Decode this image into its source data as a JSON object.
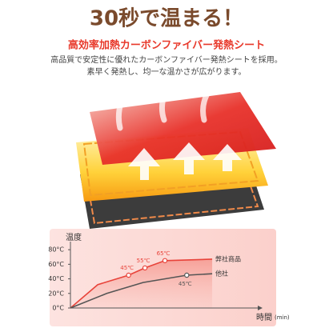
{
  "header": {
    "title": "30秒で温まる！",
    "subtitle": "高効率加熱カーボンファイバー発熱シート",
    "description": [
      "高品質で安定性に優れたカーボンファイバー発熱シートを採用。",
      "素早く発熱し、均一な温かさが広がります。"
    ]
  },
  "chart_data": {
    "type": "line",
    "y_label": "温度",
    "x_label": "時間",
    "x_unit": "(min)",
    "xlim": [
      0,
      10
    ],
    "ylim": [
      0,
      90
    ],
    "yticks": [
      {
        "value": 0,
        "label": "0°C"
      },
      {
        "value": 20,
        "label": "20°C"
      },
      {
        "value": 40,
        "label": "40°C"
      },
      {
        "value": 60,
        "label": "60°C"
      },
      {
        "value": 80,
        "label": "80°C"
      }
    ],
    "series": [
      {
        "name": "弊社商品",
        "color": "#e8433a",
        "x": [
          0,
          1.5,
          3.2,
          4.1,
          5.2,
          7.8
        ],
        "values": [
          0,
          32,
          45,
          55,
          65,
          67
        ],
        "value_labels": [
          null,
          null,
          "45℃",
          "55℃",
          "65℃",
          null
        ]
      },
      {
        "name": "他社",
        "color": "#555555",
        "x": [
          0,
          2,
          4,
          6.4,
          7.8
        ],
        "values": [
          0,
          20,
          35,
          45,
          47
        ],
        "value_labels": [
          null,
          null,
          null,
          "45℃",
          null
        ]
      }
    ]
  }
}
